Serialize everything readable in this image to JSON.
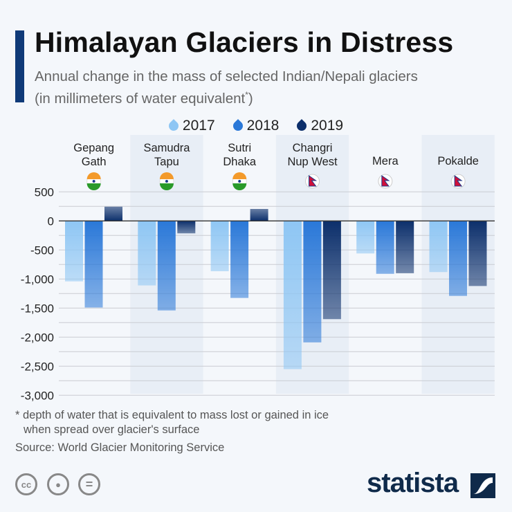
{
  "title": "Himalayan Glaciers in Distress",
  "subtitle_line1": "Annual change in the mass of selected Indian/Nepali glaciers",
  "subtitle_line2": "(in millimeters of water equivalent",
  "subtitle_mark": "*",
  "subtitle_end": ")",
  "footnote_line1": "* depth of water that is equivalent to mass lost or gained in ice",
  "footnote_line2": "when spread over glacier's surface",
  "source": "Source: World Glacier Monitoring Service",
  "logo": "statista",
  "license_icons": [
    "cc-icon",
    "by-icon",
    "nd-icon"
  ],
  "chart_data": {
    "type": "bar",
    "categories": [
      [
        "Gepang",
        "Gath"
      ],
      [
        "Samudra",
        "Tapu"
      ],
      [
        "Sutri",
        "Dhaka"
      ],
      [
        "Changri",
        "Nup West"
      ],
      [
        "Mera",
        ""
      ],
      [
        "Pokalde",
        ""
      ]
    ],
    "country_flags": [
      "india",
      "india",
      "india",
      "nepal",
      "nepal",
      "nepal"
    ],
    "series": [
      {
        "name": "2017",
        "color": "#8ec6f4",
        "values": [
          -1040,
          -1110,
          -865,
          -2550,
          -560,
          -880
        ]
      },
      {
        "name": "2018",
        "color": "#2a78d8",
        "values": [
          -1490,
          -1540,
          -1325,
          -2090,
          -910,
          -1290
        ]
      },
      {
        "name": "2019",
        "color": "#0c2f6b",
        "values": [
          245,
          -214,
          206,
          -1690,
          -900,
          -1120
        ]
      }
    ],
    "yticks": [
      500,
      0,
      -500,
      -1000,
      -1500,
      -2000,
      -2500,
      -3000
    ],
    "ytick_labels": [
      "500",
      "0",
      "-500",
      "-1,000",
      "-1,500",
      "-2,000",
      "-2,500",
      "-3,000"
    ],
    "ylim": [
      -3000,
      500
    ],
    "grid": true,
    "legend_position": "top-center"
  }
}
